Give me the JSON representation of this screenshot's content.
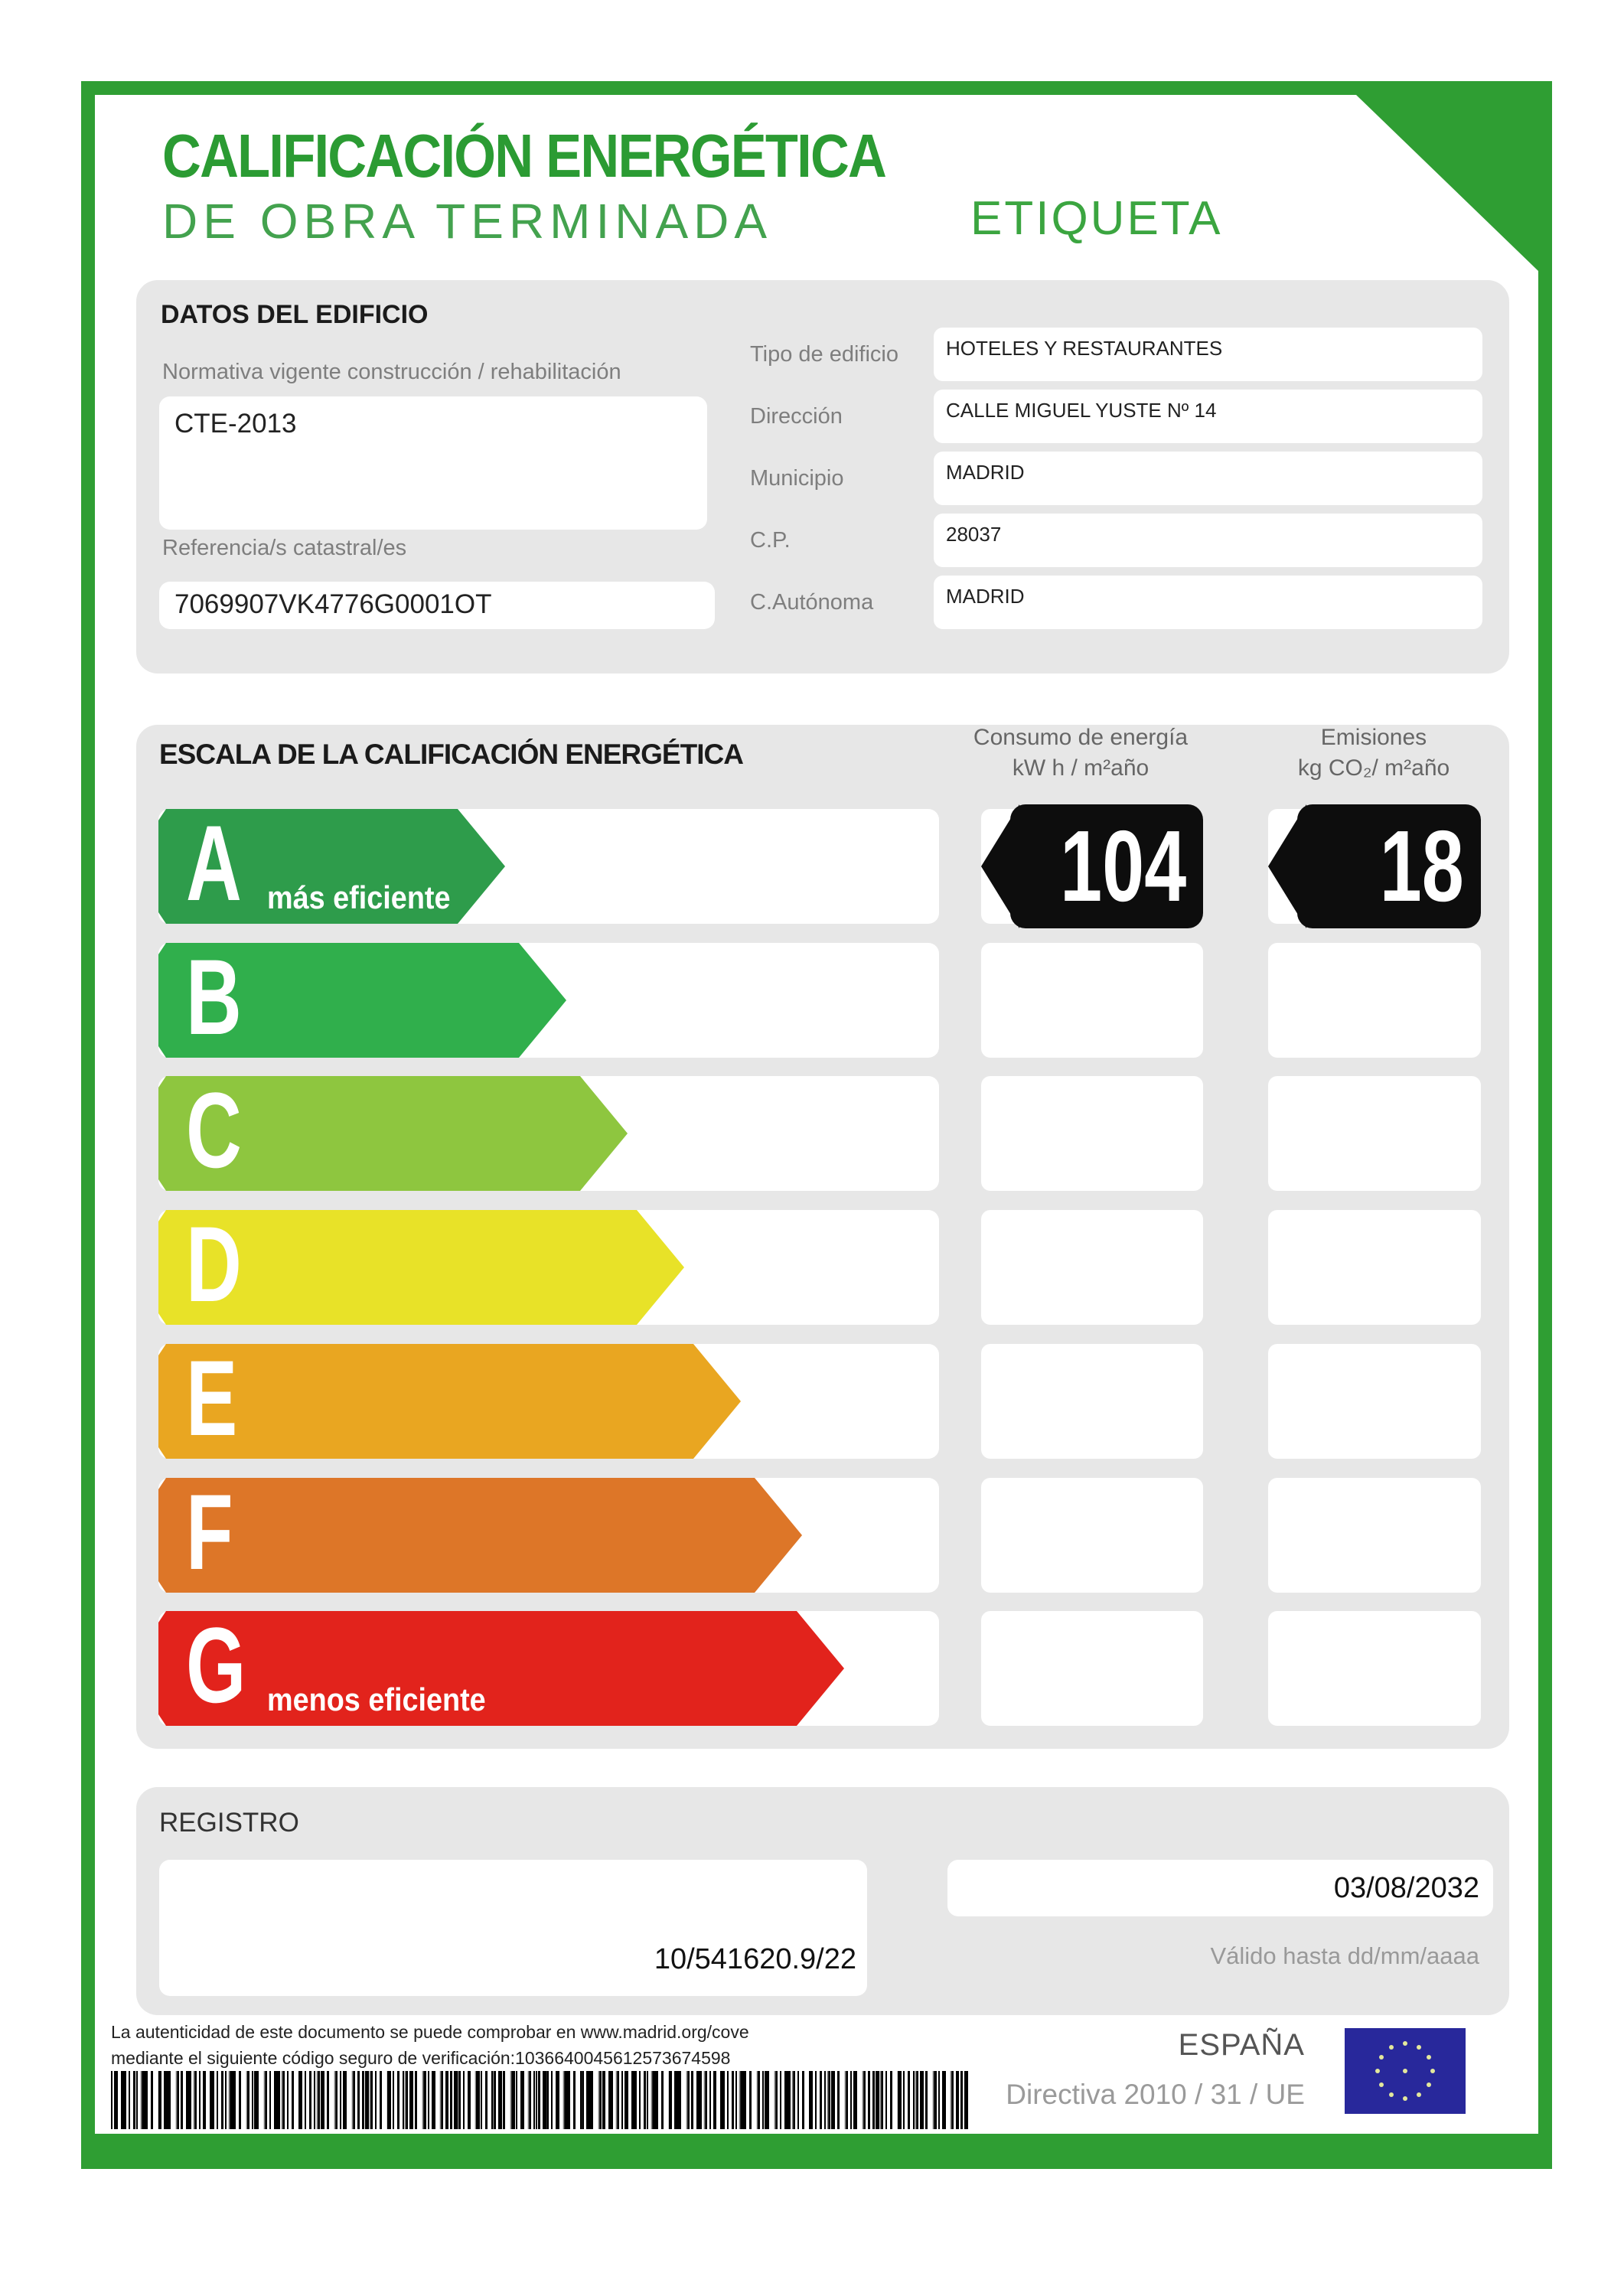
{
  "header": {
    "title": "CALIFICACIÓN ENERGÉTICA",
    "subtitle": "DE OBRA TERMINADA",
    "label_word": "ETIQUETA"
  },
  "building": {
    "section_title": "DATOS DEL EDIFICIO",
    "normativa_label": "Normativa vigente construcción / rehabilitación",
    "normativa_value": "CTE-2013",
    "referencia_label": "Referencia/s catastral/es",
    "referencia_value": "7069907VK4776G0001OT",
    "fields": [
      {
        "label": "Tipo de edificio",
        "value": "HOTELES Y RESTAURANTES"
      },
      {
        "label": "Dirección",
        "value": "CALLE MIGUEL YUSTE Nº 14"
      },
      {
        "label": "Municipio",
        "value": "MADRID"
      },
      {
        "label": "C.P.",
        "value": "28037"
      },
      {
        "label": "C.Autónoma",
        "value": "MADRID"
      }
    ]
  },
  "scale": {
    "section_title": "ESCALA DE LA CALIFICACIÓN ENERGÉTICA",
    "consumption_header": "Consumo de energía",
    "consumption_units": "kW h / m²año",
    "emissions_header": "Emisiones",
    "emissions_units": "kg CO₂/ m²año",
    "ratings": [
      {
        "letter": "A",
        "note": "más eficiente",
        "color": "#2E9C4B",
        "arrow_width": 453
      },
      {
        "letter": "B",
        "note": "",
        "color": "#30AF4C",
        "arrow_width": 533
      },
      {
        "letter": "C",
        "note": "",
        "color": "#8EC63F",
        "arrow_width": 613
      },
      {
        "letter": "D",
        "note": "",
        "color": "#E8E228",
        "arrow_width": 687
      },
      {
        "letter": "E",
        "note": "",
        "color": "#E9A621",
        "arrow_width": 761
      },
      {
        "letter": "F",
        "note": "",
        "color": "#DD7628",
        "arrow_width": 841
      },
      {
        "letter": "G",
        "note": "menos eficiente",
        "color": "#E2231C",
        "arrow_width": 896
      }
    ],
    "result": {
      "letter": "A",
      "consumption": "104",
      "emissions": "18"
    }
  },
  "registry": {
    "section_title": "REGISTRO",
    "number": "10/541620.9/22",
    "valid_until_value": "03/08/2032",
    "valid_until_label": "Válido hasta dd/mm/aaaa"
  },
  "footer": {
    "auth_line1": "La autenticidad de este documento se puede comprobar en www.madrid.org/cove",
    "auth_line2": "mediante el siguiente código seguro de verificación:1036640045612573674598",
    "country": "ESPAÑA",
    "directive": "Directiva 2010 / 31 / UE",
    "eu_flag_icon": "eu-flag",
    "barcode_icon": "barcode"
  },
  "colors": {
    "frame_green": "#2F9E33",
    "title_green": "#2B9B33",
    "subtitle_green": "#43A24E",
    "panel_gray": "#E7E7E7",
    "badge_black": "#0d0d0d",
    "eu_flag_blue": "#28289B"
  }
}
